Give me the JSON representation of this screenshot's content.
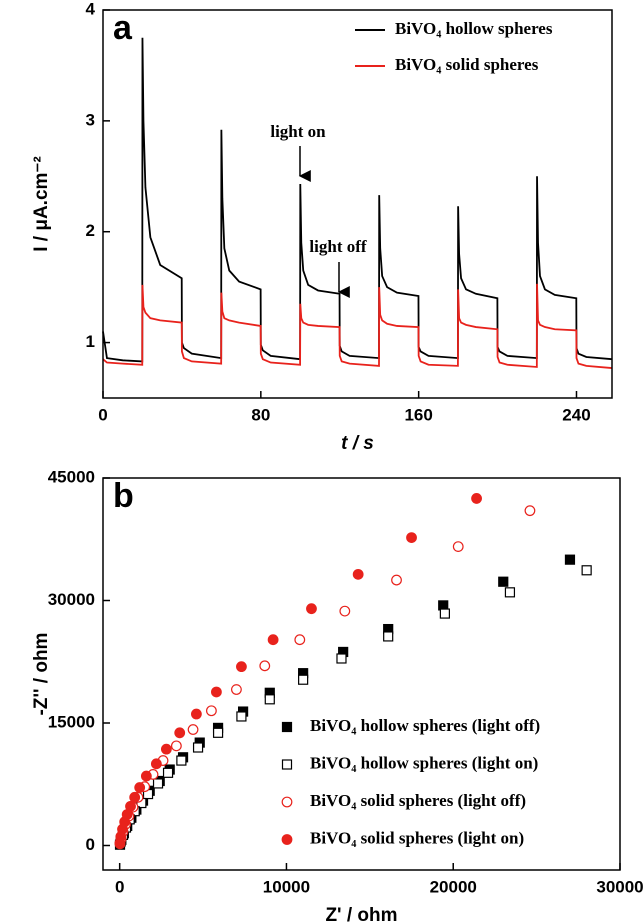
{
  "chart_data": [
    {
      "type": "line",
      "panel_label": "a",
      "xlabel": "t / s",
      "ylabel": "I / μA.cm⁻²",
      "xlim": [
        0,
        258
      ],
      "xticks": [
        0,
        80,
        160,
        240
      ],
      "ylim": [
        0.5,
        4
      ],
      "yticks": [
        1,
        2,
        3,
        4
      ],
      "legend": "upper right",
      "annotations": [
        "light on",
        "light off"
      ],
      "x": [
        0,
        2,
        10,
        19.9,
        20,
        20.5,
        21.5,
        24,
        29,
        39.9,
        40,
        41,
        45,
        59.9,
        60,
        60.5,
        61.5,
        64,
        69,
        79.9,
        80,
        81,
        85,
        99.9,
        100,
        100.5,
        101.5,
        104,
        109,
        119.9,
        120,
        121,
        125,
        139.9,
        140,
        140.5,
        141.5,
        144,
        149,
        159.9,
        160,
        161,
        165,
        179.9,
        180,
        180.5,
        181.5,
        184,
        189,
        199.9,
        200,
        201,
        205,
        219.9,
        220,
        220.5,
        221.5,
        224,
        229,
        239.9,
        240,
        241,
        245,
        258
      ],
      "series": [
        {
          "name": "BiVO₄ hollow spheres",
          "color": "#000000",
          "values": [
            1.1,
            0.86,
            0.84,
            0.83,
            3.75,
            3.0,
            2.4,
            1.95,
            1.7,
            1.58,
            1.0,
            0.95,
            0.9,
            0.86,
            2.92,
            2.3,
            1.85,
            1.65,
            1.55,
            1.48,
            0.98,
            0.93,
            0.88,
            0.85,
            2.43,
            1.9,
            1.65,
            1.52,
            1.47,
            1.44,
            0.97,
            0.92,
            0.88,
            0.86,
            2.33,
            1.85,
            1.6,
            1.5,
            1.45,
            1.42,
            0.96,
            0.92,
            0.88,
            0.86,
            2.23,
            1.8,
            1.58,
            1.48,
            1.44,
            1.4,
            0.96,
            0.92,
            0.88,
            0.86,
            2.5,
            1.9,
            1.6,
            1.48,
            1.43,
            1.4,
            0.95,
            0.9,
            0.87,
            0.85
          ]
        },
        {
          "name": "BiVO₄ solid spheres",
          "color": "#e8221c",
          "values": [
            0.85,
            0.82,
            0.81,
            0.8,
            1.52,
            1.32,
            1.27,
            1.22,
            1.2,
            1.18,
            0.92,
            0.86,
            0.83,
            0.81,
            1.45,
            1.28,
            1.22,
            1.2,
            1.18,
            1.15,
            0.9,
            0.85,
            0.82,
            0.8,
            1.35,
            1.22,
            1.18,
            1.16,
            1.15,
            1.14,
            0.88,
            0.83,
            0.81,
            0.79,
            1.5,
            1.25,
            1.2,
            1.17,
            1.15,
            1.14,
            0.88,
            0.83,
            0.8,
            0.79,
            1.48,
            1.22,
            1.18,
            1.16,
            1.14,
            1.12,
            0.87,
            0.82,
            0.8,
            0.78,
            1.53,
            1.2,
            1.16,
            1.14,
            1.12,
            1.11,
            0.86,
            0.81,
            0.79,
            0.77
          ]
        }
      ]
    },
    {
      "type": "scatter",
      "panel_label": "b",
      "xlabel": "Z' / ohm",
      "ylabel": "-Z'' / ohm",
      "xlim": [
        -1000,
        30000
      ],
      "xticks": [
        0,
        10000,
        20000,
        30000
      ],
      "ylim": [
        -3000,
        45000
      ],
      "yticks": [
        0,
        15000,
        30000,
        45000
      ],
      "legend": "lower right",
      "series": [
        {
          "name": "BiVO₄ hollow spheres (light off)",
          "color": "#000000",
          "marker": "square",
          "filled": true,
          "x": [
            27000,
            23000,
            19400,
            16100,
            13400,
            11000,
            9000,
            7400,
            5900,
            4800,
            3800,
            3000,
            2400,
            1800,
            1400,
            1000,
            700,
            450,
            250,
            100,
            20
          ],
          "values": [
            35000,
            32300,
            29400,
            26500,
            23700,
            21100,
            18700,
            16400,
            14400,
            12600,
            10800,
            9300,
            7900,
            6700,
            5500,
            4400,
            3400,
            2400,
            1500,
            700,
            100
          ]
        },
        {
          "name": "BiVO₄ hollow spheres (light on)",
          "color": "#000000",
          "marker": "square",
          "filled": false,
          "x": [
            28000,
            23400,
            19500,
            16100,
            13300,
            11000,
            9000,
            7300,
            5900,
            4700,
            3700,
            2900,
            2300,
            1700,
            1300,
            900,
            600,
            380,
            200,
            60
          ],
          "values": [
            33700,
            31000,
            28400,
            25600,
            22900,
            20300,
            17900,
            15800,
            13800,
            12000,
            10400,
            8900,
            7600,
            6300,
            5200,
            4200,
            3200,
            2200,
            1300,
            500
          ]
        },
        {
          "name": "BiVO₄ solid spheres (light off)",
          "color": "#e8221c",
          "marker": "circle",
          "filled": false,
          "x": [
            24600,
            20300,
            16600,
            13500,
            10800,
            8700,
            7000,
            5500,
            4400,
            3400,
            2600,
            2000,
            1500,
            1100,
            800,
            550,
            350,
            200,
            80,
            20
          ],
          "values": [
            41000,
            36600,
            32500,
            28700,
            25200,
            22000,
            19100,
            16500,
            14200,
            12200,
            10400,
            8700,
            7200,
            5900,
            4700,
            3600,
            2600,
            1700,
            800,
            200
          ]
        },
        {
          "name": "BiVO₄ solid spheres (light on)",
          "color": "#e8221c",
          "marker": "circle",
          "filled": true,
          "x": [
            21400,
            17500,
            14300,
            11500,
            9200,
            7300,
            5800,
            4600,
            3600,
            2800,
            2200,
            1600,
            1200,
            900,
            650,
            450,
            300,
            170,
            70,
            15
          ],
          "values": [
            42500,
            37700,
            33200,
            29000,
            25200,
            21900,
            18800,
            16100,
            13800,
            11800,
            10000,
            8500,
            7100,
            5900,
            4800,
            3800,
            2900,
            2000,
            1100,
            300
          ]
        }
      ]
    }
  ]
}
